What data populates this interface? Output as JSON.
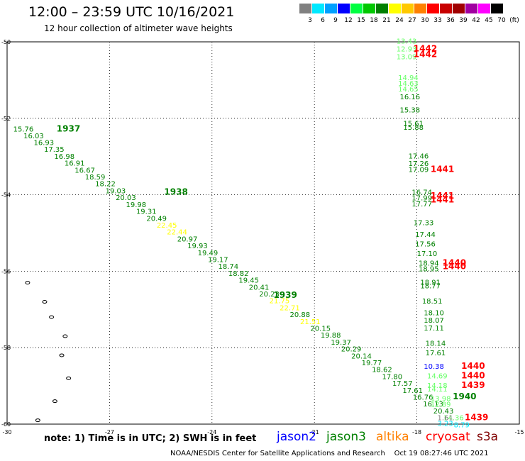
{
  "header": {
    "title": "12:00 – 23:59 UTC 10/16/2021",
    "subtitle": "12 hour collection of altimeter wave heights"
  },
  "legend": {
    "unit": "(ft)",
    "bins": [
      {
        "label": "3",
        "color": "#808080"
      },
      {
        "label": "6",
        "color": "#00e8ff"
      },
      {
        "label": "9",
        "color": "#00a0ff"
      },
      {
        "label": "12",
        "color": "#0000ff"
      },
      {
        "label": "15",
        "color": "#00ff40"
      },
      {
        "label": "18",
        "color": "#00c800"
      },
      {
        "label": "21",
        "color": "#008000"
      },
      {
        "label": "24",
        "color": "#ffff00"
      },
      {
        "label": "27",
        "color": "#ffc800"
      },
      {
        "label": "30",
        "color": "#ff8000"
      },
      {
        "label": "33",
        "color": "#ff0000"
      },
      {
        "label": "36",
        "color": "#c80000"
      },
      {
        "label": "39",
        "color": "#a00000"
      },
      {
        "label": "42",
        "color": "#a000a0"
      },
      {
        "label": "45",
        "color": "#ff00ff"
      },
      {
        "label": "70",
        "color": "#000000"
      }
    ]
  },
  "map": {
    "lon_range": [
      -30,
      -15
    ],
    "lat_range": [
      -60,
      -50
    ],
    "lon_ticks": [
      "-30",
      "-27",
      "-24",
      "-21",
      "-18",
      "-15"
    ],
    "lat_ticks": [
      "-50",
      "-52",
      "-54",
      "-56",
      "-58",
      "-60"
    ],
    "islands": [
      [
        -29.4,
        -56.3
      ],
      [
        -28.9,
        -56.8
      ],
      [
        -28.7,
        -57.2
      ],
      [
        -28.3,
        -57.7
      ],
      [
        -28.4,
        -58.2
      ],
      [
        -28.2,
        -58.8
      ],
      [
        -28.6,
        -59.4
      ],
      [
        -29.1,
        -59.9
      ]
    ],
    "track1": {
      "color": "#008000",
      "readings": [
        {
          "v": "15.76",
          "lon": -29.82,
          "lat": -52.35
        },
        {
          "v": "16.03",
          "lon": -29.52,
          "lat": -52.52
        },
        {
          "v": "16.93",
          "lon": -29.22,
          "lat": -52.7
        },
        {
          "v": "17.35",
          "lon": -28.92,
          "lat": -52.88
        },
        {
          "v": "16.98",
          "lon": -28.62,
          "lat": -53.06
        },
        {
          "v": "16.91",
          "lon": -28.32,
          "lat": -53.24
        },
        {
          "v": "16.67",
          "lon": -28.02,
          "lat": -53.42
        },
        {
          "v": "18.59",
          "lon": -27.72,
          "lat": -53.6
        },
        {
          "v": "18.22",
          "lon": -27.42,
          "lat": -53.78
        },
        {
          "v": "19.03",
          "lon": -27.12,
          "lat": -53.96
        },
        {
          "v": "20.03",
          "lon": -26.82,
          "lat": -54.14
        },
        {
          "v": "19.98",
          "lon": -26.52,
          "lat": -54.32
        },
        {
          "v": "19.31",
          "lon": -26.22,
          "lat": -54.5
        },
        {
          "v": "20.49",
          "lon": -25.92,
          "lat": -54.68
        },
        {
          "v": "22.45",
          "lon": -25.62,
          "lat": -54.86,
          "c": "#ffff00"
        },
        {
          "v": "22.44",
          "lon": -25.32,
          "lat": -55.04,
          "c": "#ffff00"
        },
        {
          "v": "20.97",
          "lon": -25.02,
          "lat": -55.22
        },
        {
          "v": "19.93",
          "lon": -24.72,
          "lat": -55.4
        },
        {
          "v": "19.49",
          "lon": -24.42,
          "lat": -55.58
        },
        {
          "v": "19.17",
          "lon": -24.12,
          "lat": -55.76
        },
        {
          "v": "18.74",
          "lon": -23.82,
          "lat": -55.94
        },
        {
          "v": "18.82",
          "lon": -23.52,
          "lat": -56.12
        },
        {
          "v": "19.45",
          "lon": -23.22,
          "lat": -56.3
        },
        {
          "v": "20.41",
          "lon": -22.92,
          "lat": -56.48
        },
        {
          "v": "20.23",
          "lon": -22.62,
          "lat": -56.66
        },
        {
          "v": "21.75",
          "lon": -22.32,
          "lat": -56.84,
          "c": "#ffff00"
        },
        {
          "v": "22.71",
          "lon": -22.02,
          "lat": -57.02,
          "c": "#ffff00"
        },
        {
          "v": "20.88",
          "lon": -21.72,
          "lat": -57.2
        },
        {
          "v": "21.51",
          "lon": -21.42,
          "lat": -57.38,
          "c": "#ffff00"
        },
        {
          "v": "20.15",
          "lon": -21.12,
          "lat": -57.56
        },
        {
          "v": "19.88",
          "lon": -20.82,
          "lat": -57.74
        },
        {
          "v": "19.37",
          "lon": -20.52,
          "lat": -57.92
        },
        {
          "v": "20.29",
          "lon": -20.22,
          "lat": -58.1
        },
        {
          "v": "20.14",
          "lon": -19.92,
          "lat": -58.28
        },
        {
          "v": "19.77",
          "lon": -19.62,
          "lat": -58.46
        },
        {
          "v": "18.62",
          "lon": -19.32,
          "lat": -58.64
        },
        {
          "v": "17.80",
          "lon": -19.02,
          "lat": -58.82
        },
        {
          "v": "17.57",
          "lon": -18.72,
          "lat": -59.0
        },
        {
          "v": "17.61",
          "lon": -18.42,
          "lat": -59.18
        },
        {
          "v": "16.76",
          "lon": -18.12,
          "lat": -59.36
        },
        {
          "v": "16.13",
          "lon": -17.82,
          "lat": -59.54
        },
        {
          "v": "20.43",
          "lon": -17.52,
          "lat": -59.72
        },
        {
          "v": "14.36",
          "lon": -17.22,
          "lat": -59.9,
          "c": "#66ff66"
        },
        {
          "v": "8.79",
          "lon": -16.92,
          "lat": -60.08,
          "c": "#00e8ff"
        }
      ],
      "times": [
        {
          "t": "1937",
          "lon": -28.55,
          "lat": -52.35
        },
        {
          "t": "1938",
          "lon": -25.4,
          "lat": -54.0
        },
        {
          "t": "1939",
          "lon": -22.2,
          "lat": -56.7
        },
        {
          "t": "1940",
          "lon": -16.95,
          "lat": -59.35
        }
      ]
    },
    "track2": {
      "color": "#008000",
      "readings": [
        {
          "v": "13.43",
          "lon": -18.6,
          "lat": -50.05,
          "c": "#66ff66"
        },
        {
          "v": "12.93",
          "lon": -18.6,
          "lat": -50.25,
          "c": "#66ff66"
        },
        {
          "v": "13.09",
          "lon": -18.6,
          "lat": -50.45,
          "c": "#66ff66"
        },
        {
          "v": "14.94",
          "lon": -18.55,
          "lat": -51.0,
          "c": "#66ff66"
        },
        {
          "v": "14.63",
          "lon": -18.55,
          "lat": -51.15,
          "c": "#66ff66"
        },
        {
          "v": "14.65",
          "lon": -18.55,
          "lat": -51.3,
          "c": "#66ff66"
        },
        {
          "v": "16.16",
          "lon": -18.5,
          "lat": -51.5
        },
        {
          "v": "15.38",
          "lon": -18.5,
          "lat": -51.85
        },
        {
          "v": "15.61",
          "lon": -18.4,
          "lat": -52.2
        },
        {
          "v": "15.88",
          "lon": -18.4,
          "lat": -52.3
        },
        {
          "v": "17.46",
          "lon": -18.25,
          "lat": -53.05
        },
        {
          "v": "17.26",
          "lon": -18.25,
          "lat": -53.25
        },
        {
          "v": "17.09",
          "lon": -18.25,
          "lat": -53.4
        },
        {
          "v": "16.74",
          "lon": -18.15,
          "lat": -54.0
        },
        {
          "v": "17.99",
          "lon": -18.15,
          "lat": -54.15
        },
        {
          "v": "17.77",
          "lon": -18.15,
          "lat": -54.3
        },
        {
          "v": "17.33",
          "lon": -18.1,
          "lat": -54.8
        },
        {
          "v": "17.44",
          "lon": -18.05,
          "lat": -55.1
        },
        {
          "v": "17.56",
          "lon": -18.05,
          "lat": -55.35
        },
        {
          "v": "17.10",
          "lon": -18.0,
          "lat": -55.6
        },
        {
          "v": "18.94",
          "lon": -17.95,
          "lat": -55.85
        },
        {
          "v": "18.95",
          "lon": -17.95,
          "lat": -56.0
        },
        {
          "v": "18.91",
          "lon": -17.9,
          "lat": -56.35
        },
        {
          "v": "18.77",
          "lon": -17.9,
          "lat": -56.45
        },
        {
          "v": "18.51",
          "lon": -17.85,
          "lat": -56.85
        },
        {
          "v": "18.10",
          "lon": -17.8,
          "lat": -57.15
        },
        {
          "v": "18.07",
          "lon": -17.8,
          "lat": -57.35
        },
        {
          "v": "17.11",
          "lon": -17.8,
          "lat": -57.55
        },
        {
          "v": "18.14",
          "lon": -17.75,
          "lat": -57.95
        },
        {
          "v": "17.61",
          "lon": -17.75,
          "lat": -58.2
        },
        {
          "v": "14.69",
          "lon": -17.7,
          "lat": -58.8,
          "c": "#66ff66"
        },
        {
          "v": "14.18",
          "lon": -17.7,
          "lat": -59.05,
          "c": "#66ff66"
        },
        {
          "v": "14.11",
          "lon": -17.7,
          "lat": -59.15,
          "c": "#66ff66"
        },
        {
          "v": "13.98",
          "lon": -17.6,
          "lat": -59.4,
          "c": "#66ff66"
        },
        {
          "v": "12.89",
          "lon": -17.6,
          "lat": -59.55,
          "c": "#66ff66"
        }
      ],
      "times": []
    },
    "track3": {
      "readings": [
        {
          "v": "10.38",
          "lon": -17.8,
          "lat": -58.55,
          "c": "#0000ff"
        },
        {
          "v": "1.61",
          "lon": -17.4,
          "lat": -59.9,
          "c": "#808080"
        },
        {
          "v": "3.23",
          "lon": -17.4,
          "lat": -60.05,
          "c": "#00e8ff"
        }
      ],
      "times": [
        {
          "t": "1442",
          "lon": -18.1,
          "lat": -50.25,
          "c": "#ff0000"
        },
        {
          "t": "1442",
          "lon": -18.1,
          "lat": -50.4,
          "c": "#ff0000"
        },
        {
          "t": "1441",
          "lon": -17.6,
          "lat": -53.4,
          "c": "#ff0000"
        },
        {
          "t": "1441",
          "lon": -17.6,
          "lat": -54.1,
          "c": "#ff0000"
        },
        {
          "t": "1441",
          "lon": -17.6,
          "lat": -54.2,
          "c": "#ff0000"
        },
        {
          "t": "1440",
          "lon": -17.25,
          "lat": -55.85,
          "c": "#ff0000"
        },
        {
          "t": "1440",
          "lon": -17.25,
          "lat": -55.95,
          "c": "#ff0000"
        },
        {
          "t": "1440",
          "lon": -16.7,
          "lat": -58.55,
          "c": "#ff0000"
        },
        {
          "t": "1440",
          "lon": -16.7,
          "lat": -58.8,
          "c": "#ff0000"
        },
        {
          "t": "1439",
          "lon": -16.7,
          "lat": -59.05,
          "c": "#ff0000"
        },
        {
          "t": "1439",
          "lon": -16.6,
          "lat": -59.9,
          "c": "#ff0000"
        }
      ]
    }
  },
  "footer": {
    "note": "note: 1) Time is in UTC; 2) SWH is in feet",
    "satellites": [
      {
        "name": "jason2",
        "color": "#0000ff"
      },
      {
        "name": "jason3",
        "color": "#008000"
      },
      {
        "name": "altika",
        "color": "#ff8000"
      },
      {
        "name": "cryosat",
        "color": "#ff0000"
      },
      {
        "name": "s3a",
        "color": "#800000"
      }
    ],
    "credit": "NOAA/NESDIS Center for Satellite Applications and Research    Oct 19 08:27:46 UTC 2021"
  }
}
